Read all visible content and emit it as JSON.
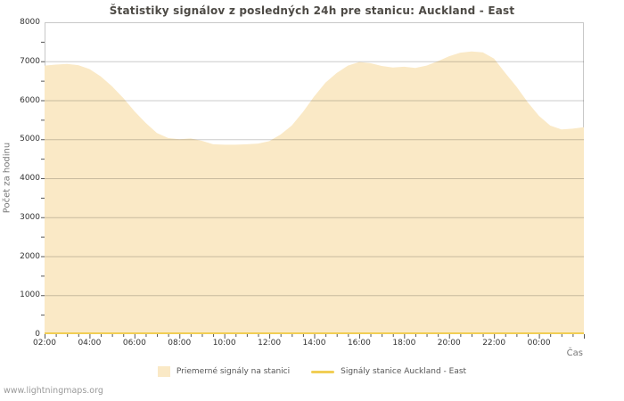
{
  "title": "Štatistiky signálov z posledných 24h pre stanicu: Auckland - East",
  "watermark": "www.lightningmaps.org",
  "colors": {
    "area": "#FAE9C6",
    "line": "#F1CE55",
    "grid": "#CCCCCC",
    "border": "#C8C8C8",
    "tick_mark": "#555555",
    "title_text": "#4D4A45",
    "tick_text": "#333333",
    "axis_title_text": "#777777",
    "legend_text": "#555555",
    "watermark_text": "#9A9A9A"
  },
  "legend": {
    "items": [
      {
        "label": "Priemerné signály na stanici",
        "swatch": "area"
      },
      {
        "label": "Signály stanice Auckland - East",
        "swatch": "line"
      }
    ]
  },
  "chart_data": {
    "type": "area",
    "title": "Štatistiky signálov z posledných 24h pre stanicu: Auckland - East",
    "xlabel": "Čas",
    "ylabel": "Počet za hodinu",
    "ylim": [
      0,
      8000
    ],
    "y_tick_step": 1000,
    "y_minor_tick_step": 500,
    "grid": true,
    "legend_position": "bottom",
    "x_tick_labels": [
      "02:00",
      "04:00",
      "06:00",
      "08:00",
      "10:00",
      "12:00",
      "14:00",
      "16:00",
      "18:00",
      "20:00",
      "22:00",
      "00:00"
    ],
    "x": [
      "02:00",
      "02:30",
      "03:00",
      "03:30",
      "04:00",
      "04:30",
      "05:00",
      "05:30",
      "06:00",
      "06:30",
      "07:00",
      "07:30",
      "08:00",
      "08:30",
      "09:00",
      "09:30",
      "10:00",
      "10:30",
      "11:00",
      "11:30",
      "12:00",
      "12:30",
      "13:00",
      "13:30",
      "14:00",
      "14:30",
      "15:00",
      "15:30",
      "16:00",
      "16:30",
      "17:00",
      "17:30",
      "18:00",
      "18:30",
      "19:00",
      "19:30",
      "20:00",
      "20:30",
      "21:00",
      "21:30",
      "22:00",
      "22:30",
      "23:00",
      "23:30",
      "00:00",
      "00:30",
      "01:00",
      "01:30",
      "02:00"
    ],
    "series": [
      {
        "name": "Priemerné signály na stanici",
        "style": "area",
        "values": [
          6890,
          6915,
          6930,
          6900,
          6800,
          6610,
          6360,
          6060,
          5720,
          5420,
          5160,
          5030,
          5000,
          5020,
          4960,
          4870,
          4860,
          4860,
          4870,
          4890,
          4950,
          5120,
          5350,
          5700,
          6100,
          6450,
          6700,
          6890,
          6980,
          6950,
          6880,
          6840,
          6860,
          6830,
          6890,
          7000,
          7130,
          7220,
          7250,
          7230,
          7070,
          6700,
          6350,
          5950,
          5600,
          5350,
          5250,
          5270,
          5310
        ]
      },
      {
        "name": "Signály stanice Auckland - East",
        "style": "line",
        "values": [
          0,
          0,
          0,
          0,
          0,
          0,
          0,
          0,
          0,
          0,
          0,
          0,
          0,
          0,
          0,
          0,
          0,
          0,
          0,
          0,
          0,
          0,
          0,
          0,
          0,
          0,
          0,
          0,
          0,
          0,
          0,
          0,
          0,
          0,
          0,
          0,
          0,
          0,
          0,
          0,
          0,
          0,
          0,
          0,
          0,
          0,
          0,
          0,
          0
        ]
      }
    ]
  }
}
